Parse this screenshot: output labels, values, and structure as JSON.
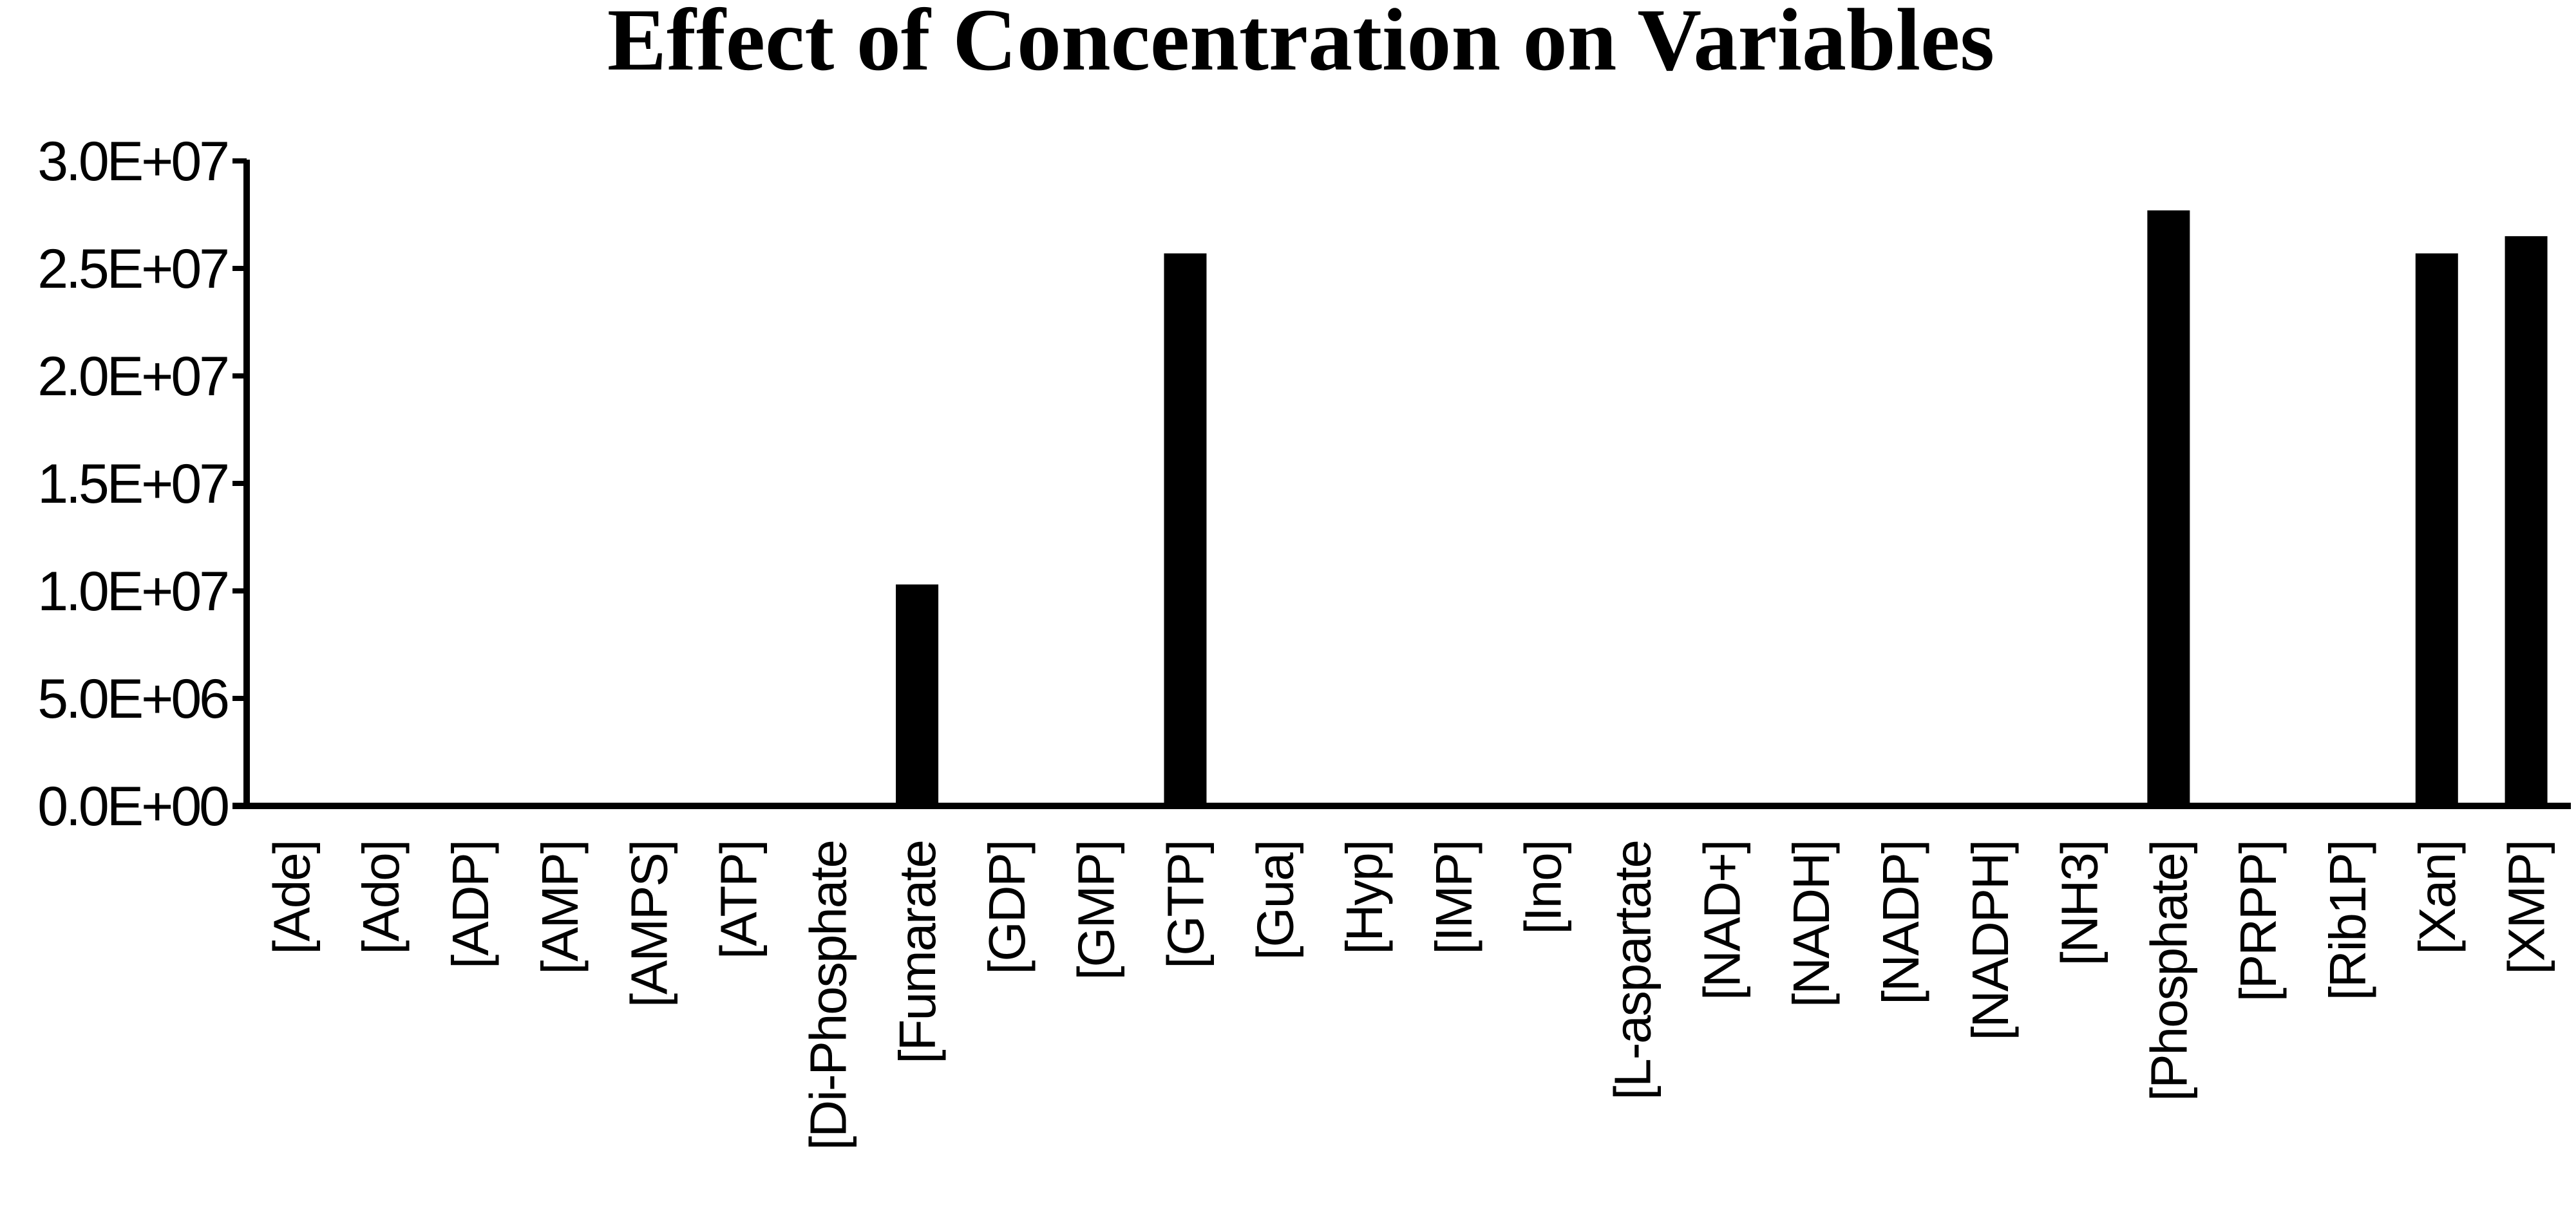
{
  "chart_data": {
    "type": "bar",
    "title": "Effect of Concentration on Variables",
    "xlabel": "",
    "ylabel": "",
    "ylim": [
      0,
      30000000
    ],
    "ytick_values": [
      0,
      5000000,
      10000000,
      15000000,
      20000000,
      25000000,
      30000000
    ],
    "ytick_labels": [
      "0.0E+00",
      "5.0E+06",
      "1.0E+07",
      "1.5E+07",
      "2.0E+07",
      "2.5E+07",
      "3.0E+07"
    ],
    "categories": [
      "[Ade]",
      "[Ado]",
      "[ADP]",
      "[AMP]",
      "[AMPS]",
      "[ATP]",
      "[Di-Phosphate",
      "[Fumarate",
      "[GDP]",
      "[GMP]",
      "[GTP]",
      "[Gua]",
      "[Hyp]",
      "[IMP]",
      "[Ino]",
      "[L-aspartate",
      "[NAD+]",
      "[NADH]",
      "[NADP]",
      "[NADPH]",
      "[NH3]",
      "[Phosphate]",
      "[PRPP]",
      "[Rib1P]",
      "[Xan]",
      "[XMP]"
    ],
    "values": [
      0,
      0,
      0,
      0,
      0,
      0,
      0,
      10300000,
      0,
      0,
      25700000,
      0,
      0,
      0,
      0,
      0,
      0,
      0,
      0,
      0,
      0,
      27700000,
      0,
      0,
      25700000,
      26500000
    ],
    "grid": false,
    "legend": "none",
    "bar_color": "#000000",
    "axis_color": "#000000"
  }
}
